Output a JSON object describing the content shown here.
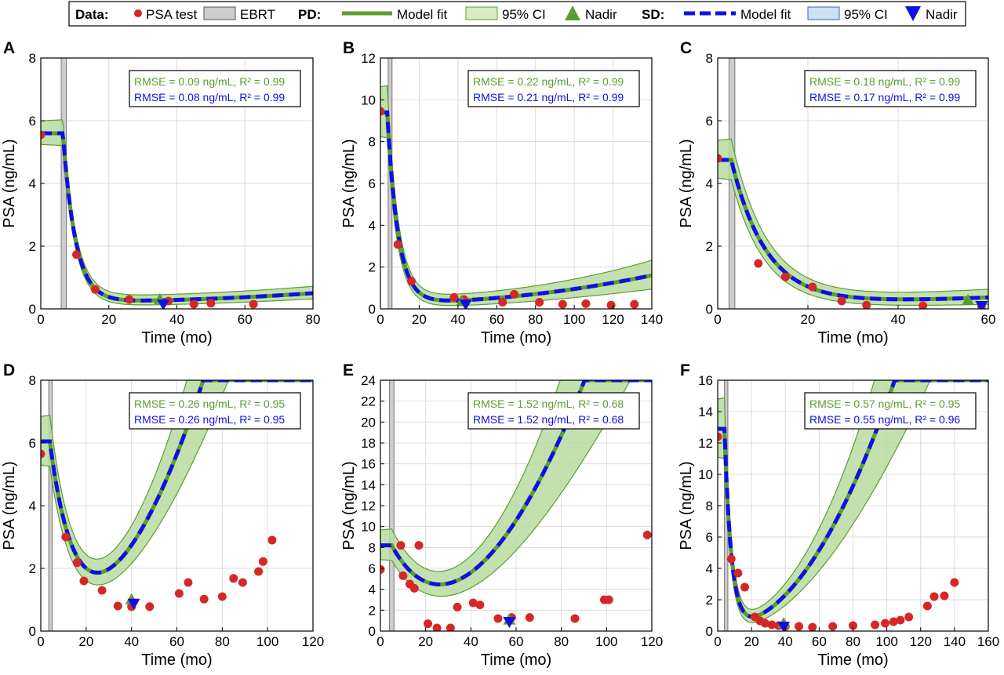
{
  "legend": {
    "data_label": "Data:",
    "psa_test": "PSA test",
    "ebrt": "EBRT",
    "pd_label": "PD:",
    "pd_model_fit": "Model fit",
    "pd_ci": "95% CI",
    "pd_nadir": "Nadir",
    "sd_label": "SD:",
    "sd_model_fit": "Model fit",
    "sd_ci": "95% CI",
    "sd_nadir": "Nadir"
  },
  "colors": {
    "psa_test": "#d62728",
    "pd": "#5a9e2f",
    "pd_ci_fill": "#b8dca0",
    "sd": "#1010e0",
    "sd_ci_fill": "#b9d3ee",
    "ebrt": "#cccccc"
  },
  "chart_data": [
    {
      "type": "line",
      "panel": "A",
      "xlabel": "Time (mo)",
      "ylabel": "PSA (ng/mL)",
      "xlim": [
        0,
        80
      ],
      "ylim": [
        0,
        8
      ],
      "xticks": [
        0,
        20,
        40,
        60,
        80
      ],
      "yticks": [
        0,
        2,
        4,
        6,
        8
      ],
      "grid": true,
      "ebrt": [
        6,
        7.5
      ],
      "pd_stats": "RMSE = 0.09 ng/mL, R² = 0.99",
      "sd_stats": "RMSE = 0.08 ng/mL, R² = 0.99",
      "psa_test": [
        [
          0,
          5.55
        ],
        [
          10.5,
          1.73
        ],
        [
          16,
          0.62
        ],
        [
          26,
          0.3
        ],
        [
          37.5,
          0.25
        ],
        [
          45,
          0.15
        ],
        [
          50,
          0.18
        ],
        [
          62.5,
          0.15
        ]
      ],
      "model": {
        "p": 5.6,
        "t0": 6.5,
        "c": 0.23,
        "k": 0.27,
        "r": 0.0005,
        "ci": 0.12
      },
      "pd_nadir": [
        35,
        0.28
      ],
      "sd_nadir": [
        36,
        0.15
      ]
    },
    {
      "type": "line",
      "panel": "B",
      "xlabel": "Time (mo)",
      "ylabel": "PSA (ng/mL)",
      "xlim": [
        0,
        140
      ],
      "ylim": [
        0,
        12
      ],
      "xticks": [
        0,
        20,
        40,
        60,
        80,
        100,
        120,
        140
      ],
      "yticks": [
        0,
        2,
        4,
        6,
        8,
        10,
        12
      ],
      "grid": true,
      "ebrt": [
        4,
        6
      ],
      "pd_stats": "RMSE = 0.22 ng/mL, R² = 0.99",
      "sd_stats": "RMSE = 0.21 ng/mL, R² = 0.99",
      "psa_test": [
        [
          0,
          9.45
        ],
        [
          9,
          3.08
        ],
        [
          16,
          1.32
        ],
        [
          38,
          0.55
        ],
        [
          43,
          0.45
        ],
        [
          63,
          0.32
        ],
        [
          69,
          0.7
        ],
        [
          82,
          0.32
        ],
        [
          94,
          0.22
        ],
        [
          106,
          0.25
        ],
        [
          119,
          0.18
        ],
        [
          131,
          0.22
        ]
      ],
      "model": {
        "p": 9.4,
        "t0": 3.5,
        "c": 0.3,
        "k": 0.18,
        "r": 0.0007,
        "ci": 0.3
      },
      "pd_nadir": [
        42,
        0.32
      ],
      "sd_nadir": [
        44,
        0.22
      ]
    },
    {
      "type": "line",
      "panel": "C",
      "xlabel": "Time (mo)",
      "ylabel": "PSA (ng/mL)",
      "xlim": [
        0,
        60
      ],
      "ylim": [
        0,
        8
      ],
      "xticks": [
        0,
        20,
        40,
        60
      ],
      "yticks": [
        0,
        2,
        4,
        6,
        8
      ],
      "grid": true,
      "ebrt": [
        2.5,
        3.8
      ],
      "pd_stats": "RMSE = 0.18 ng/mL, R² = 0.99",
      "sd_stats": "RMSE = 0.17 ng/mL, R² = 0.99",
      "psa_test": [
        [
          0,
          4.8
        ],
        [
          9,
          1.45
        ],
        [
          15,
          1.02
        ],
        [
          21,
          0.7
        ],
        [
          27.5,
          0.25
        ],
        [
          33,
          0.12
        ],
        [
          45.5,
          0.1
        ],
        [
          58.5,
          0.08
        ]
      ],
      "model": {
        "p": 4.75,
        "t0": 3,
        "c": 0.2,
        "k": 0.13,
        "r": 0.0005,
        "ci": 0.28
      },
      "pd_nadir": [
        55.5,
        0.25
      ],
      "sd_nadir": [
        58.5,
        0.1
      ]
    },
    {
      "type": "line",
      "panel": "D",
      "xlabel": "Time (mo)",
      "ylabel": "PSA (ng/mL)",
      "xlim": [
        0,
        120
      ],
      "ylim": [
        0,
        8
      ],
      "xticks": [
        0,
        20,
        40,
        60,
        80,
        100,
        120
      ],
      "yticks": [
        0,
        2,
        4,
        6,
        8
      ],
      "grid": true,
      "ebrt": [
        3.5,
        5
      ],
      "pd_stats": "RMSE = 0.26 ng/mL, R² = 0.95",
      "sd_stats": "RMSE = 0.26 ng/mL, R² = 0.95",
      "psa_test": [
        [
          0,
          5.65
        ],
        [
          11,
          3.0
        ],
        [
          16,
          2.18
        ],
        [
          19,
          1.6
        ],
        [
          27,
          1.3
        ],
        [
          34,
          0.8
        ],
        [
          40,
          0.78
        ],
        [
          48,
          0.78
        ],
        [
          61,
          1.2
        ],
        [
          65,
          1.55
        ],
        [
          72,
          1.02
        ],
        [
          80,
          1.1
        ],
        [
          85,
          1.68
        ],
        [
          89,
          1.55
        ],
        [
          96,
          1.9
        ],
        [
          98,
          2.22
        ],
        [
          102,
          2.9
        ]
      ],
      "model": {
        "p": 6.05,
        "t0": 4,
        "c": 0.45,
        "k": 0.1,
        "r": 0.0165,
        "ci": 0.3
      },
      "pd_nadir": [
        40,
        0.98
      ],
      "sd_nadir": [
        41,
        0.88
      ]
    },
    {
      "type": "line",
      "panel": "E",
      "xlabel": "Time (mo)",
      "ylabel": "PSA (ng/mL)",
      "xlim": [
        0,
        120
      ],
      "ylim": [
        0,
        24
      ],
      "xticks": [
        0,
        20,
        40,
        60,
        80,
        100,
        120
      ],
      "yticks": [
        0,
        2,
        4,
        6,
        8,
        10,
        12,
        14,
        16,
        18,
        20,
        22,
        24
      ],
      "grid": true,
      "ebrt": [
        4,
        6
      ],
      "pd_stats": "RMSE = 1.52 ng/mL, R² = 0.68",
      "sd_stats": "RMSE = 1.52 ng/mL, R² = 0.68",
      "psa_test": [
        [
          0,
          5.9
        ],
        [
          9,
          8.2
        ],
        [
          10,
          5.3
        ],
        [
          13,
          4.5
        ],
        [
          15,
          4.1
        ],
        [
          17,
          8.2
        ],
        [
          21,
          0.7
        ],
        [
          25,
          0.3
        ],
        [
          31,
          0.3
        ],
        [
          34,
          2.3
        ],
        [
          41,
          2.7
        ],
        [
          44,
          2.5
        ],
        [
          52,
          1.2
        ],
        [
          58,
          1.3
        ],
        [
          66,
          1.3
        ],
        [
          86,
          1.2
        ],
        [
          99,
          3.0
        ],
        [
          101,
          3.0
        ],
        [
          118,
          9.2
        ]
      ],
      "model": {
        "p": 8.2,
        "t0": 5,
        "c": 0.25,
        "k": 0.05,
        "r": 0.0325,
        "ci": 0.35
      },
      "pd_nadir": [
        57,
        1.0
      ],
      "sd_nadir": [
        57,
        0.9
      ]
    },
    {
      "type": "line",
      "panel": "F",
      "xlabel": "Time (mo)",
      "ylabel": "PSA (ng/mL)",
      "xlim": [
        0,
        160
      ],
      "ylim": [
        0,
        16
      ],
      "xticks": [
        0,
        20,
        40,
        60,
        80,
        100,
        120,
        140,
        160
      ],
      "yticks": [
        0,
        2,
        4,
        6,
        8,
        10,
        12,
        14,
        16
      ],
      "grid": true,
      "ebrt": [
        4,
        6
      ],
      "pd_stats": "RMSE = 0.57 ng/mL, R² = 0.95",
      "sd_stats": "RMSE = 0.55 ng/mL, R² = 0.96",
      "psa_test": [
        [
          0,
          12.4
        ],
        [
          8,
          4.6
        ],
        [
          12,
          3.7
        ],
        [
          16,
          2.8
        ],
        [
          22,
          0.9
        ],
        [
          25,
          0.65
        ],
        [
          28,
          0.5
        ],
        [
          32,
          0.4
        ],
        [
          36,
          0.35
        ],
        [
          40,
          0.3
        ],
        [
          48,
          0.3
        ],
        [
          56,
          0.25
        ],
        [
          68,
          0.3
        ],
        [
          80,
          0.35
        ],
        [
          93,
          0.4
        ],
        [
          99,
          0.5
        ],
        [
          104,
          0.6
        ],
        [
          108,
          0.7
        ],
        [
          113,
          0.9
        ],
        [
          124,
          1.6
        ],
        [
          128,
          2.2
        ],
        [
          134,
          2.25
        ],
        [
          140,
          3.1
        ]
      ],
      "model": {
        "p": 12.9,
        "t0": 4,
        "c": 0.3,
        "k": 0.25,
        "r": 0.0155,
        "ci": 0.35
      },
      "pd_nadir": [
        39,
        0.45
      ],
      "sd_nadir": [
        39,
        0.3
      ]
    }
  ]
}
